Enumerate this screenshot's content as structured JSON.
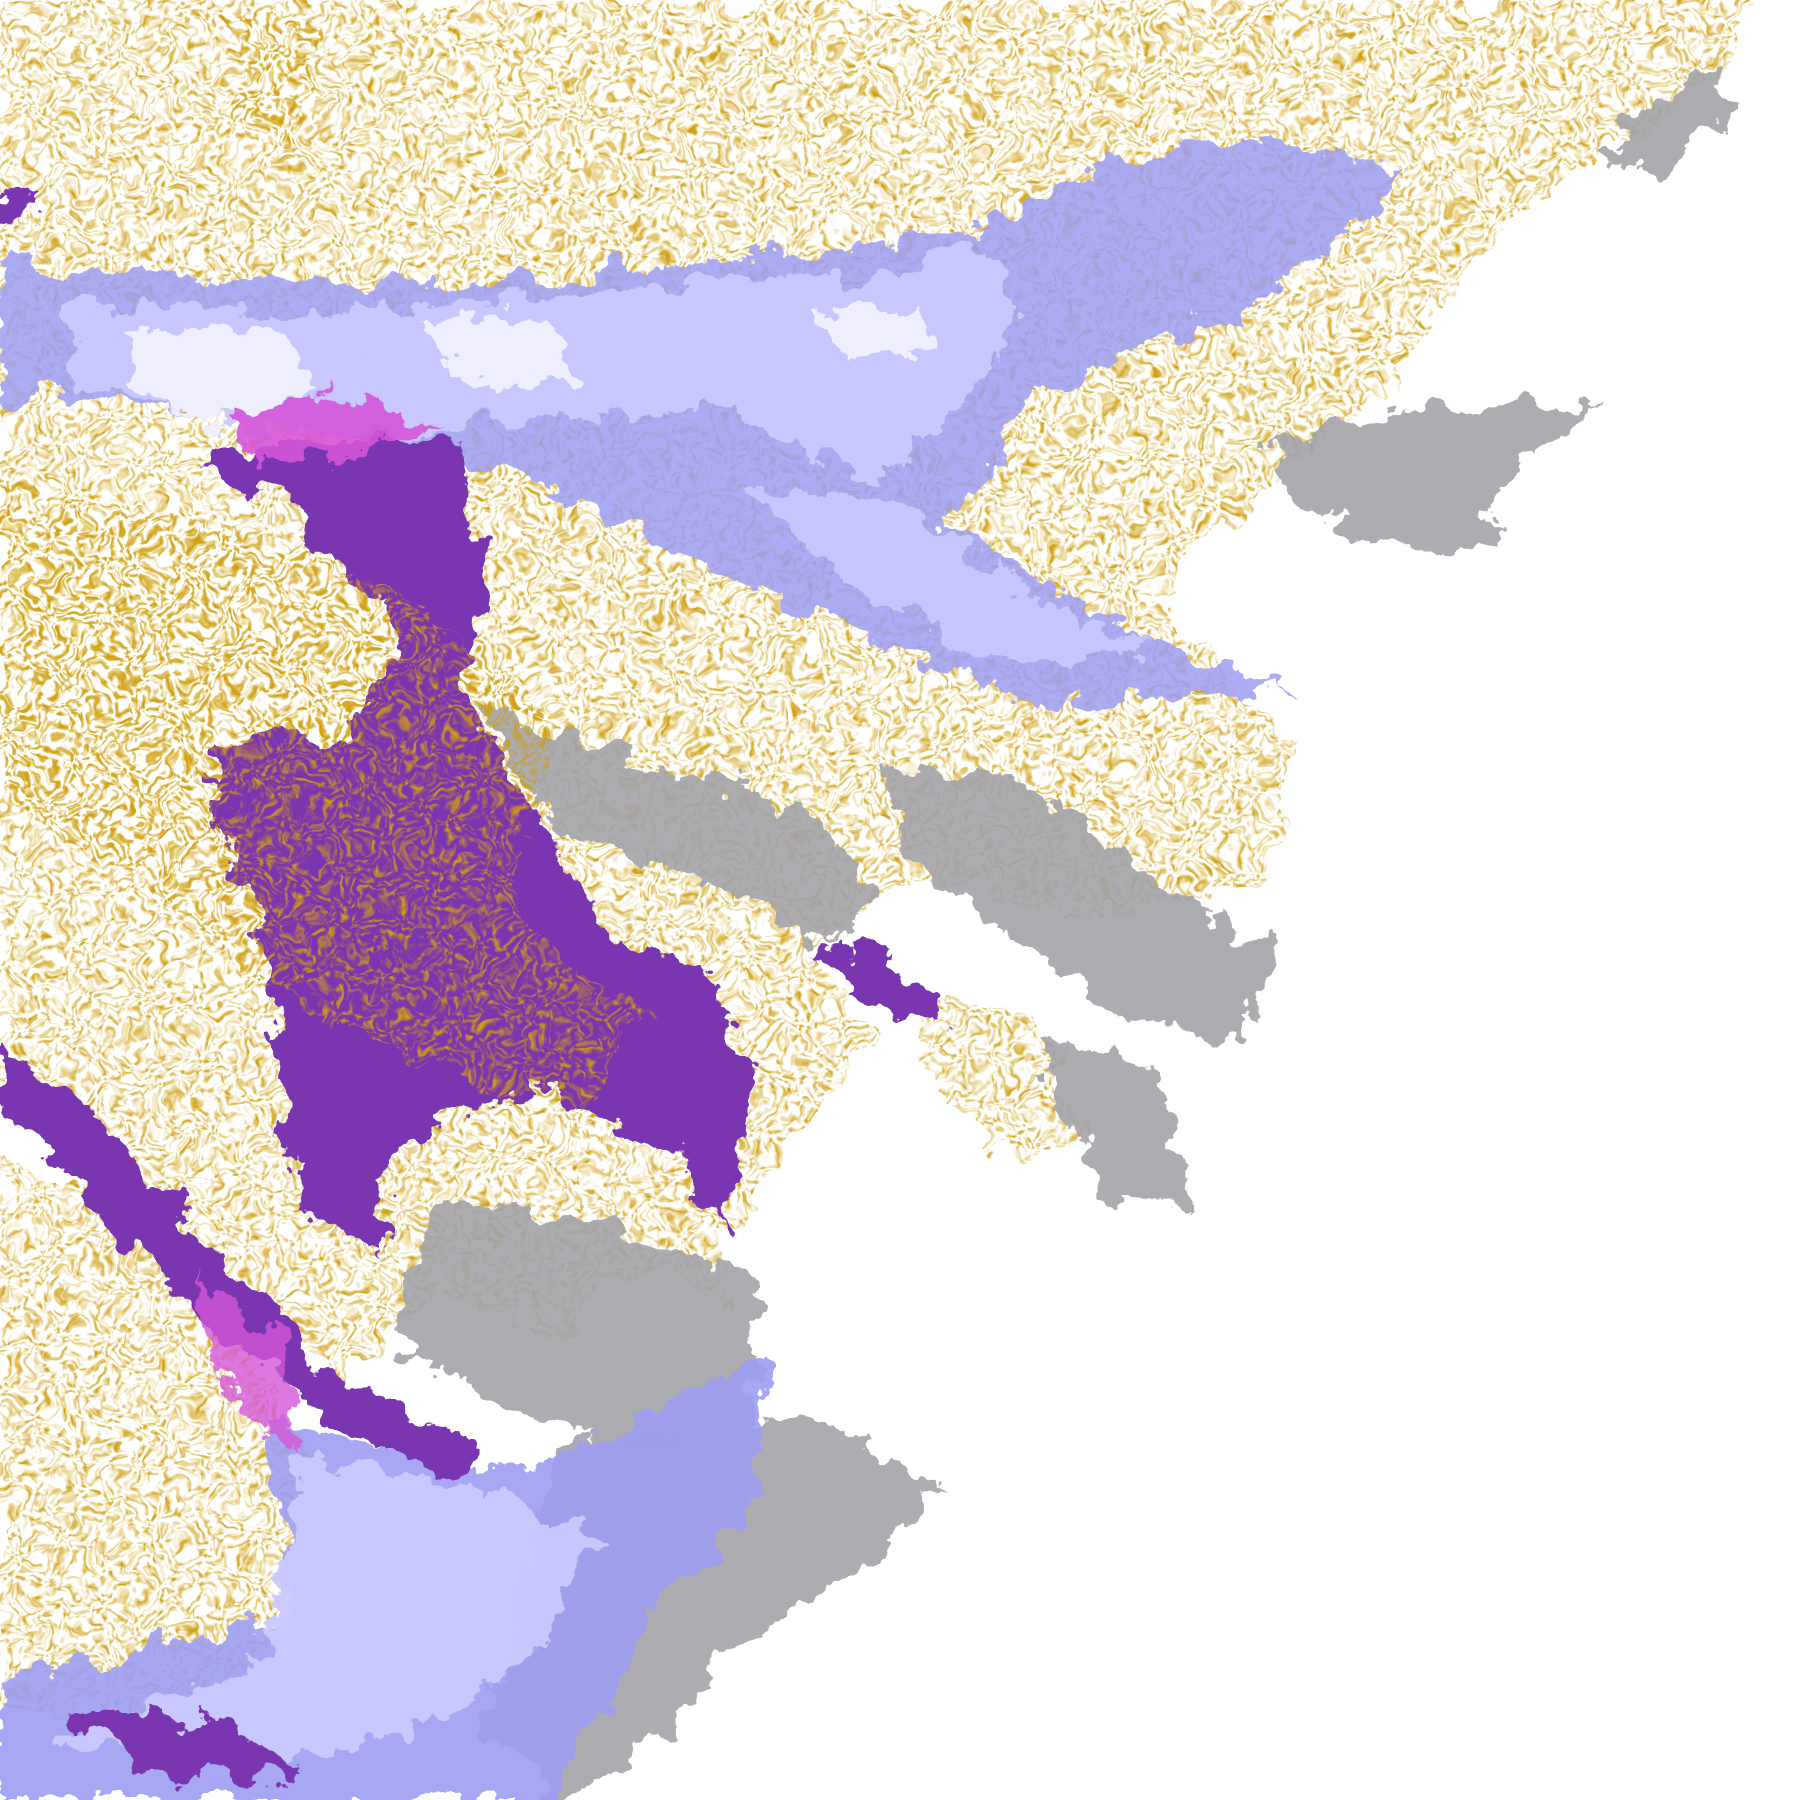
{
  "map": {
    "background_color": "#ffffff",
    "class_colors": {
      "gold": "#d1a00f",
      "purple": "#7a36b1",
      "magenta": "#d455d8",
      "light_lavender": "#c9c9ff",
      "medium_lavender": "#9d9df2",
      "pale_lavender": "#eeeeff",
      "gray": "#a3a3a8"
    }
  }
}
